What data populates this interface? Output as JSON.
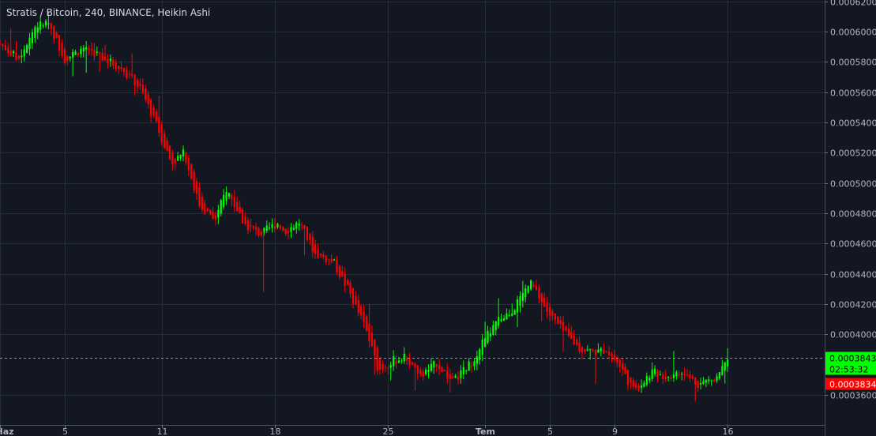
{
  "chart_data": {
    "type": "candlestick",
    "title": "Stratis / Bitcoin, 240, BINANCE, Heikin Ashi",
    "ylim": [
      0.00034,
      0.000621
    ],
    "grid": true,
    "y_ticks": [
      "0.0003600",
      "0.0004000",
      "0.0004200",
      "0.0004400",
      "0.0004600",
      "0.0004800",
      "0.0005000",
      "0.0005200",
      "0.0005400",
      "0.0005600",
      "0.0005800",
      "0.0006000",
      "0.0006200"
    ],
    "y_tick_values": [
      0.00036,
      0.0004,
      0.00042,
      0.00044,
      0.00046,
      0.00048,
      0.0005,
      0.00052,
      0.00054,
      0.00056,
      0.00058,
      0.0006,
      0.00062
    ],
    "x_labels": [
      {
        "label": "Haz",
        "day": 1,
        "bold": true
      },
      {
        "label": "5",
        "day": 5,
        "bold": false
      },
      {
        "label": "11",
        "day": 11,
        "bold": false
      },
      {
        "label": "18",
        "day": 18,
        "bold": false
      },
      {
        "label": "25",
        "day": 25,
        "bold": false
      },
      {
        "label": "Tem",
        "day": 31,
        "bold": true
      },
      {
        "label": "5",
        "day": 35,
        "bold": false
      },
      {
        "label": "9",
        "day": 39,
        "bold": false
      },
      {
        "label": "16",
        "day": 46,
        "bold": false
      }
    ],
    "x_range_days": [
      1,
      52
    ],
    "current_price": {
      "value": 0.0003843,
      "label": "0.0003843",
      "countdown": "02:53:32",
      "color": "#00ff00"
    },
    "low_marker": {
      "value": 0.0003834,
      "label": "0.0003834",
      "color": "#ff0000"
    },
    "series": [
      {
        "up_color": "#00ff00",
        "down_color": "#ff0000",
        "waypoints": [
          [
            1.0,
            0.000592
          ],
          [
            2.1,
            0.000582
          ],
          [
            3.2,
            0.000604
          ],
          [
            4.0,
            0.000606
          ],
          [
            5.0,
            0.000582
          ],
          [
            6.3,
            0.00059
          ],
          [
            7.5,
            0.000582
          ],
          [
            8.7,
            0.000574
          ],
          [
            9.7,
            0.000562
          ],
          [
            10.8,
            0.000535
          ],
          [
            11.6,
            0.000513
          ],
          [
            12.4,
            0.00052
          ],
          [
            13.3,
            0.000486
          ],
          [
            14.3,
            0.000475
          ],
          [
            15.0,
            0.000496
          ],
          [
            16.1,
            0.000473
          ],
          [
            17.1,
            0.000466
          ],
          [
            18.2,
            0.000474
          ],
          [
            18.6,
            0.000468
          ],
          [
            19.5,
            0.000474
          ],
          [
            20.5,
            0.000453
          ],
          [
            21.6,
            0.000448
          ],
          [
            22.5,
            0.00043
          ],
          [
            23.6,
            0.000404
          ],
          [
            24.4,
            0.000376
          ],
          [
            25.2,
            0.000382
          ],
          [
            26.1,
            0.000385
          ],
          [
            27.0,
            0.000372
          ],
          [
            28.0,
            0.000381
          ],
          [
            29.0,
            0.000368
          ],
          [
            30.2,
            0.000382
          ],
          [
            30.9,
            0.000396
          ],
          [
            31.9,
            0.00041
          ],
          [
            32.7,
            0.000416
          ],
          [
            33.8,
            0.000434
          ],
          [
            34.9,
            0.000414
          ],
          [
            35.8,
            0.000402
          ],
          [
            36.9,
            0.00039
          ],
          [
            37.9,
            0.000388
          ],
          [
            38.5,
            0.00039
          ],
          [
            39.4,
            0.000378
          ],
          [
            40.2,
            0.000362
          ],
          [
            41.3,
            0.000375
          ],
          [
            42.2,
            0.000372
          ],
          [
            43.2,
            0.000374
          ],
          [
            44.2,
            0.000367
          ],
          [
            45.2,
            0.000371
          ],
          [
            46.0,
            0.000386
          ]
        ]
      }
    ]
  }
}
